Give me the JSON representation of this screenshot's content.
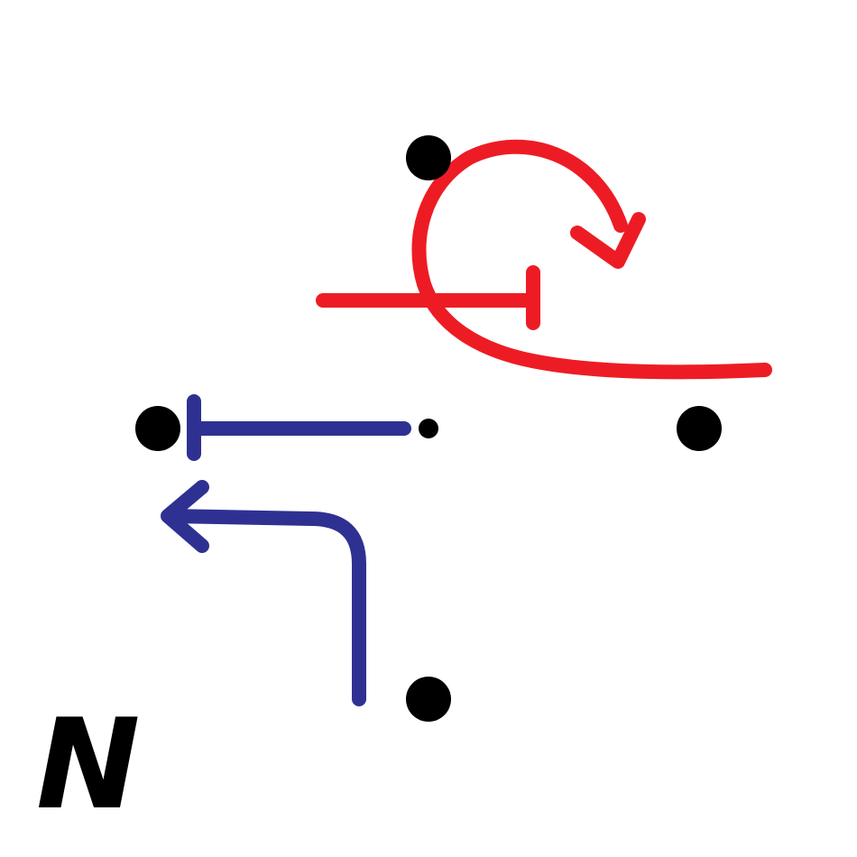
{
  "diagram": {
    "compass_label": "N",
    "colors": {
      "background": "#ffffff",
      "node": "#000000",
      "movement_red": "#ed1c24",
      "movement_blue": "#2e3192",
      "label": "#000000"
    },
    "nodes": [
      {
        "name": "node-north"
      },
      {
        "name": "node-west"
      },
      {
        "name": "node-center"
      },
      {
        "name": "node-east"
      },
      {
        "name": "node-south"
      }
    ],
    "movements": [
      {
        "name": "red-u-turn-arrow",
        "color": "movement_red",
        "shape": "u-turn"
      },
      {
        "name": "red-blocked-line",
        "color": "movement_red",
        "shape": "t-bar"
      },
      {
        "name": "blue-blocked-line",
        "color": "movement_blue",
        "shape": "t-bar"
      },
      {
        "name": "blue-left-turn-arrow",
        "color": "movement_blue",
        "shape": "left-turn"
      }
    ]
  }
}
